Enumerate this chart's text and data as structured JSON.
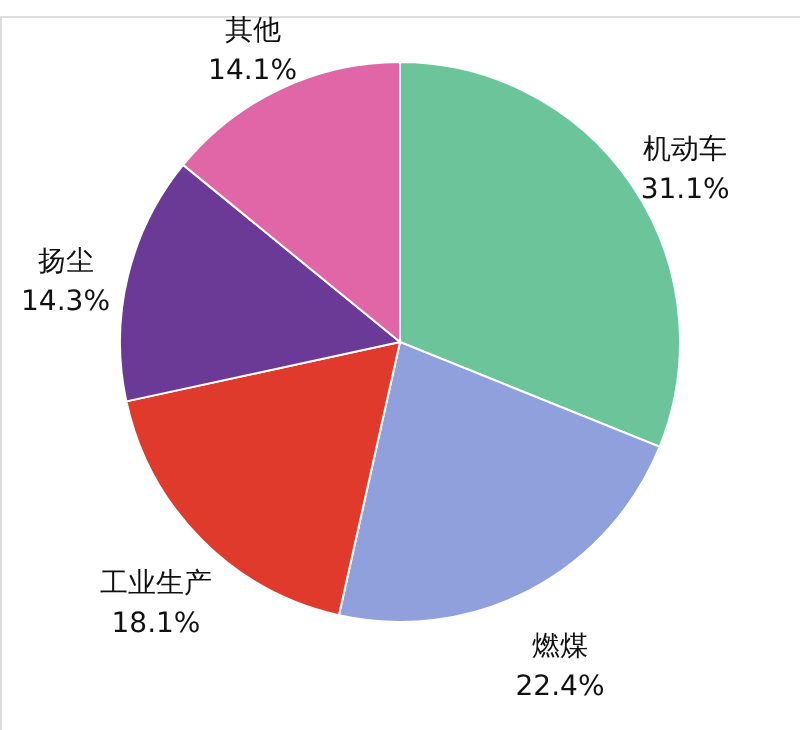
{
  "chart_data": {
    "type": "pie",
    "categories": [
      "机动车",
      "燃煤",
      "工业生产",
      "扬尘",
      "其他"
    ],
    "values": [
      31.1,
      22.4,
      18.1,
      14.3,
      14.1
    ],
    "colors": [
      "#6cc49a",
      "#8fa0dc",
      "#e03a2c",
      "#6b3a96",
      "#e066a8"
    ],
    "value_labels": [
      "31.1%",
      "22.4%",
      "18.1%",
      "14.3%",
      "14.1%"
    ]
  }
}
